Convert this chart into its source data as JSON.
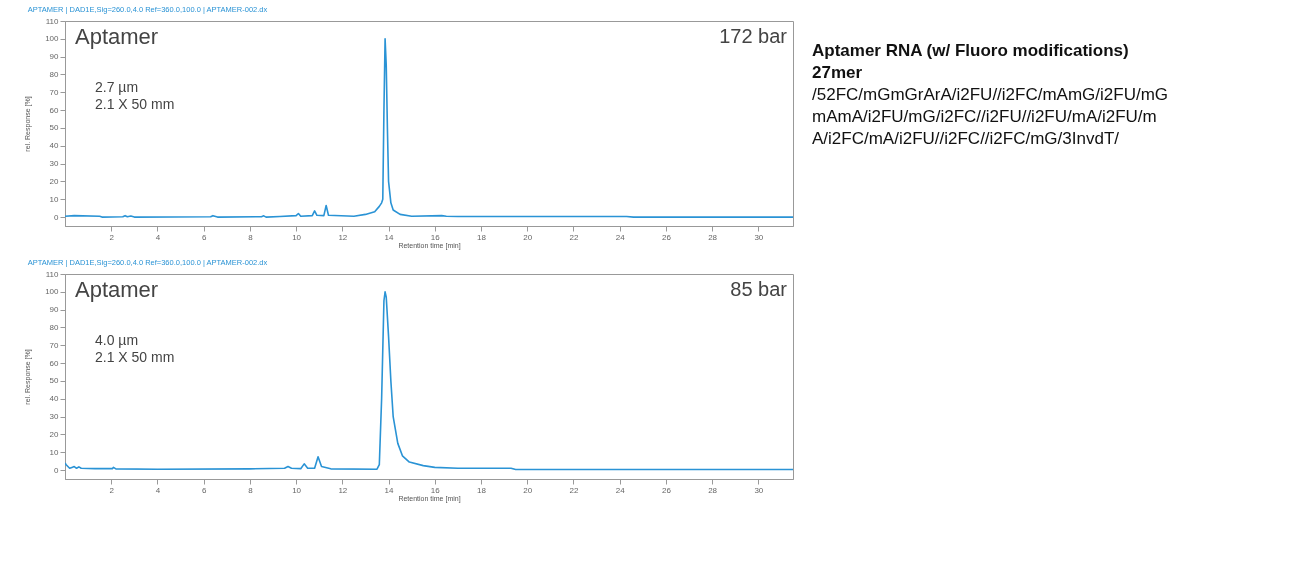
{
  "chart_data": [
    {
      "type": "line",
      "title": "APTAMER | DAD1E,Sig=260.0,4.0 Ref=360.0,100.0 | APTAMER-002.dx",
      "xlabel": "Retention time [min]",
      "ylabel": "rel. Response [%]",
      "annotations": [
        "Aptamer",
        "172 bar",
        "2.7 µm",
        "2.1 X 50 mm"
      ],
      "xlim": [
        0,
        31.5
      ],
      "ylim": [
        -5,
        110
      ],
      "xticks": [
        2,
        4,
        6,
        8,
        10,
        12,
        14,
        16,
        18,
        20,
        22,
        24,
        26,
        28,
        30
      ],
      "yticks": [
        0,
        10,
        20,
        30,
        40,
        50,
        60,
        70,
        80,
        90,
        100,
        110
      ],
      "grid": false,
      "marker": "none",
      "line_style": "solid",
      "series": [
        {
          "color": "#2a93d5",
          "x": [
            0,
            0.4,
            1.5,
            1.6,
            2.5,
            2.6,
            2.7,
            2.85,
            3,
            6.3,
            6.4,
            6.6,
            8.5,
            8.6,
            8.7,
            9.3,
            10.0,
            10.1,
            10.2,
            10.7,
            10.8,
            10.9,
            11.2,
            11.3,
            11.4,
            12.5,
            13.0,
            13.4,
            13.6,
            13.7,
            13.75,
            13.8,
            13.85,
            13.9,
            13.95,
            14.0,
            14.1,
            14.2,
            14.5,
            15,
            16.3,
            16.5,
            17,
            24.3,
            24.6,
            31.5
          ],
          "values": [
            0.5,
            0.8,
            0.5,
            0,
            0.2,
            0.8,
            0.2,
            0.6,
            0,
            0.2,
            0.8,
            0,
            0.2,
            0.7,
            0,
            0.3,
            0.8,
            2,
            0.5,
            0.8,
            3.5,
            1,
            0.8,
            6.5,
            1,
            0.5,
            1.5,
            3,
            6,
            8,
            10,
            60,
            100,
            85,
            50,
            20,
            8,
            4,
            1.5,
            0.5,
            0.8,
            0.5,
            0.3,
            0.3,
            0,
            0
          ]
        }
      ]
    },
    {
      "type": "line",
      "title": "APTAMER | DAD1E,Sig=260.0,4.0 Ref=360.0,100.0 | APTAMER-002.dx",
      "xlabel": "Retention time [min]",
      "ylabel": "rel. Response [%]",
      "annotations": [
        "Aptamer",
        "85 bar",
        "4.0 µm",
        "2.1 X 50 mm"
      ],
      "xlim": [
        0,
        31.5
      ],
      "ylim": [
        -5,
        110
      ],
      "xticks": [
        2,
        4,
        6,
        8,
        10,
        12,
        14,
        16,
        18,
        20,
        22,
        24,
        26,
        28,
        30
      ],
      "yticks": [
        0,
        10,
        20,
        30,
        40,
        50,
        60,
        70,
        80,
        90,
        100,
        110
      ],
      "grid": false,
      "marker": "none",
      "line_style": "solid",
      "series": [
        {
          "color": "#2a93d5",
          "x": [
            0,
            0.05,
            0.2,
            0.3,
            0.4,
            0.5,
            0.6,
            0.7,
            1.3,
            2.05,
            2.1,
            2.2,
            4,
            8,
            9.5,
            9.65,
            9.8,
            10.2,
            10.35,
            10.5,
            10.8,
            10.95,
            11.1,
            11.5,
            13.5,
            13.6,
            13.7,
            13.8,
            13.85,
            13.9,
            14.0,
            14.1,
            14.2,
            14.4,
            14.6,
            14.9,
            15.5,
            16,
            17,
            19.3,
            19.5,
            31.5
          ],
          "values": [
            4,
            3,
            1,
            1.5,
            2,
            1,
            1.8,
            1,
            0.8,
            0.8,
            1.5,
            0.7,
            0.5,
            0.7,
            1,
            2,
            1,
            0.8,
            3.5,
            1,
            1,
            7.5,
            2,
            0.7,
            0.5,
            3,
            40,
            95,
            100,
            97,
            75,
            50,
            30,
            15,
            8,
            4.5,
            2.5,
            1.5,
            1,
            1,
            0.3,
            0.3
          ]
        }
      ]
    },
    {
      "type": "other",
      "title": "Aptamer RNA (w/ Fluoro modifications) 27mer",
      "annotations": [
        "/52FC/mGmGrArA/i2FU//i2FC/mAmG/i2FU/mGmAmA/i2FU/mG/i2FC//i2FU//i2FU/mA/i2FU/mA/i2FC/mA/i2FU//i2FC//i2FC/mG/3InvdT/"
      ]
    }
  ]
}
